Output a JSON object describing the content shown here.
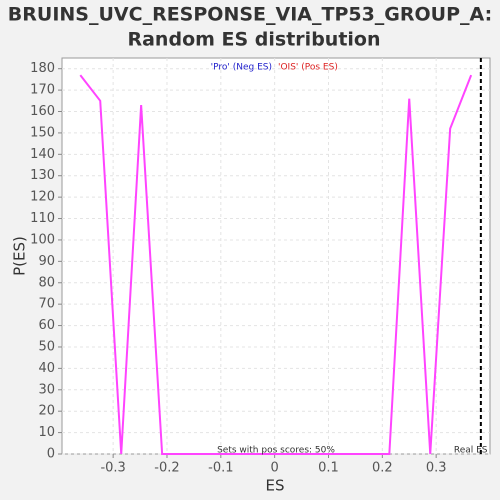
{
  "chart_data": {
    "type": "line",
    "title": [
      "BRUINS_UVC_RESPONSE_VIA_TP53_GROUP_A:",
      "Random ES distribution"
    ],
    "x_label": "ES",
    "y_label": "P(ES)",
    "x": [
      -0.361,
      -0.324,
      -0.285,
      -0.248,
      -0.209,
      0.213,
      0.25,
      0.289,
      0.326,
      0.365
    ],
    "series": [
      {
        "color": "#ff44ff",
        "values": [
          177,
          165,
          0,
          163,
          0,
          0,
          166,
          0,
          152,
          177
        ]
      }
    ],
    "xlim": [
      -0.395,
      0.4
    ],
    "ylim": [
      0,
      185
    ],
    "xticks": [
      -0.3,
      -0.2,
      -0.1,
      0,
      0.1,
      0.2,
      0.3
    ],
    "yticks": [
      0,
      10,
      20,
      30,
      40,
      50,
      60,
      70,
      80,
      90,
      100,
      110,
      120,
      130,
      140,
      150,
      160,
      170,
      180
    ],
    "grid": true,
    "legend": [
      {
        "name": "'Pro' (Neg ES)",
        "color": "#2222cc"
      },
      {
        "name": "'OIS' (Pos ES)",
        "color": "#dd2222"
      }
    ],
    "real_es": {
      "value": 0.383,
      "label": "Real ES"
    },
    "annotation": "Sets with pos scores: 50%"
  }
}
